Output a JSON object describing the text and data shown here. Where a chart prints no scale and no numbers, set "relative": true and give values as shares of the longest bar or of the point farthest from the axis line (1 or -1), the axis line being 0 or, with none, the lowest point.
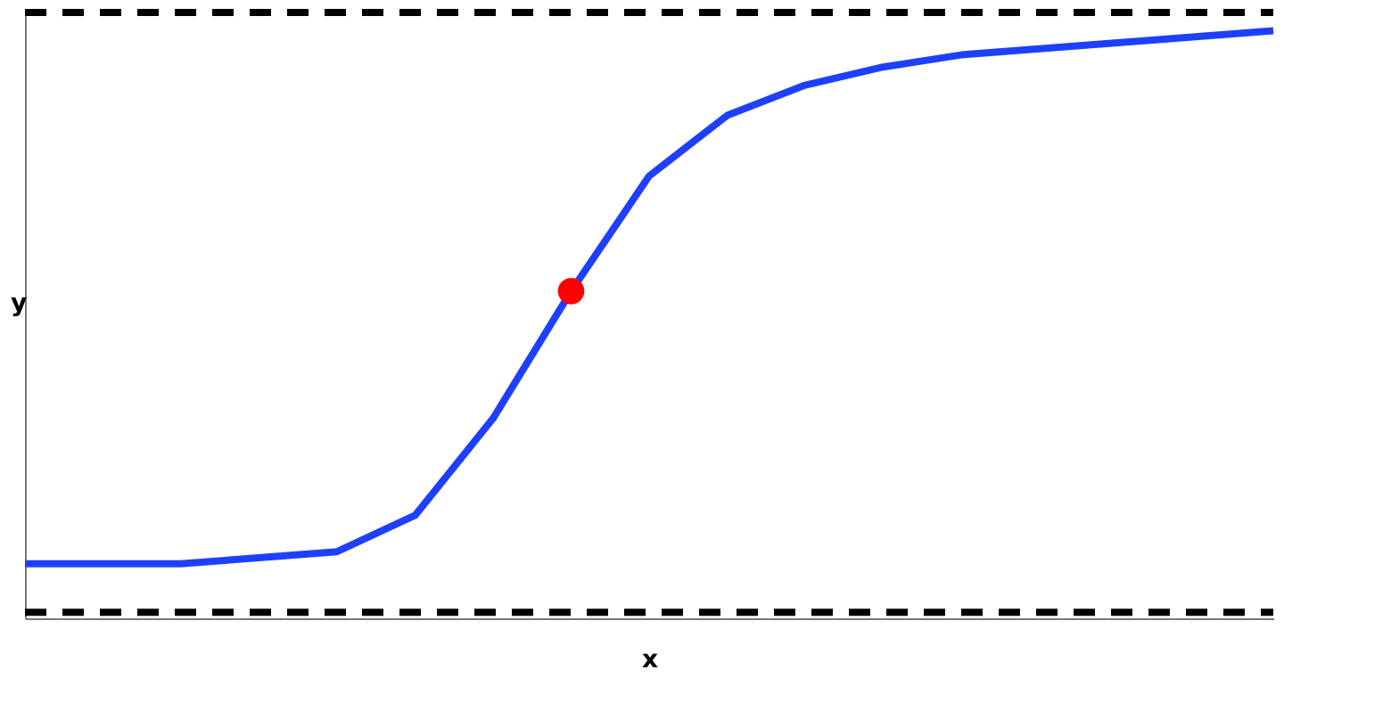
{
  "chart_data": {
    "type": "line",
    "xlabel": "x",
    "ylabel": "y",
    "relative": true,
    "grid": false,
    "marker": "none",
    "line_style": "solid",
    "categories": [
      null,
      null,
      null,
      null,
      null,
      null,
      null,
      null,
      null,
      null,
      null,
      null,
      null,
      null,
      null,
      null,
      null
    ],
    "series": [
      {
        "color": "#000000",
        "line_style": "dashed",
        "values": [
          1,
          1,
          1,
          1,
          1,
          1,
          1,
          1,
          1,
          1,
          1,
          1,
          1,
          1,
          1,
          1,
          1
        ]
      },
      {
        "color": "#000000",
        "line_style": "dashed",
        "values": [
          0.01,
          0.01,
          0.01,
          0.01,
          0.01,
          0.01,
          0.01,
          0.01,
          0.01,
          0.01,
          0.01,
          0.01,
          0.01,
          0.01,
          0.01,
          0.01,
          0.01
        ]
      },
      {
        "color": "#1f3fff",
        "values": [
          0.09,
          0.09,
          0.09,
          0.1,
          0.11,
          0.17,
          0.33,
          0.54,
          0.73,
          0.83,
          0.88,
          0.91,
          0.93,
          0.94,
          0.95,
          0.96,
          0.97
        ]
      },
      {
        "color": "#ff0000",
        "marker": "circle",
        "values": [
          null,
          null,
          null,
          null,
          null,
          null,
          null,
          0.54,
          null,
          null,
          null,
          null,
          null,
          null,
          null,
          null,
          null
        ]
      }
    ]
  }
}
